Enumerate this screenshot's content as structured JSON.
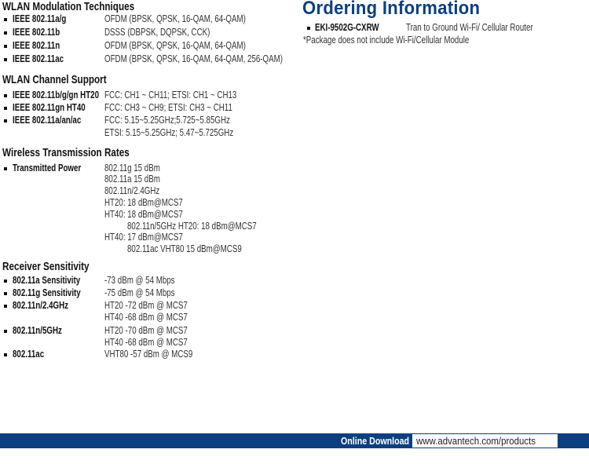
{
  "modulation": {
    "title": "WLAN Modulation Techniques",
    "rows": [
      {
        "label": "IEEE 802.11a/g",
        "value": "OFDM (BPSK, QPSK, 16-QAM, 64-QAM)"
      },
      {
        "label": "IEEE 802.11b",
        "value": "DSSS (DBPSK, DQPSK, CCK)"
      },
      {
        "label": "IEEE 802.11n",
        "value": "OFDM (BPSK, QPSK, 16-QAM, 64-QAM)"
      },
      {
        "label": "IEEE 802.11ac",
        "value": "OFDM (BPSK, QPSK, 16-QAM, 64-QAM, 256-QAM)"
      }
    ]
  },
  "channel": {
    "title": "WLAN Channel Support",
    "rows": [
      {
        "label": "IEEE 802.11b/g/gn HT20",
        "value": "FCC: CH1 ~ CH11; ETSI: CH1 ~ CH13"
      },
      {
        "label": "IEEE 802.11gn HT40",
        "value": "FCC: CH3 ~ CH9; ETSI: CH3 ~ CH11"
      },
      {
        "label": "IEEE 802.11a/an/ac",
        "value": "FCC: 5.15~5.25GHz;5.725~5.85GHz",
        "value2": "ETSI: 5.15~5.25GHz; 5.47~5.725GHz"
      }
    ]
  },
  "rates": {
    "title": "Wireless Transmission Rates",
    "label": "Transmitted Power",
    "lines": [
      "802.11g 15 dBm",
      "802.11a 15 dBm",
      "802.11n/2.4GHz",
      "HT20: 18 dBm@MCS7",
      "HT40: 18 dBm@MCS7",
      "802.11n/5GHz HT20: 18 dBm@MCS7",
      "HT40: 17 dBm@MCS7",
      "802.11ac VHT80 15 dBm@MCS9"
    ]
  },
  "sensitivity": {
    "title": "Receiver Sensitivity",
    "rows": [
      {
        "label": "802.11a Sensitivity",
        "value": "-73 dBm @ 54 Mbps"
      },
      {
        "label": "802.11g Sensitivity",
        "value": "-75 dBm @ 54 Mbps"
      },
      {
        "label": "802.11n/2.4GHz",
        "value": "HT20 -72 dBm @ MCS7",
        "value2": "HT40 -68 dBm @ MCS7"
      },
      {
        "label": "802.11n/5GHz",
        "value": "HT20 -70 dBm @ MCS7",
        "value2": "HT40 -68 dBm @ MCS7"
      },
      {
        "label": "802.11ac",
        "value": "VHT80 -57 dBm @ MCS9"
      }
    ]
  },
  "ordering": {
    "title": "Ordering Information",
    "model": "EKI-9502G-CXRW",
    "description": "Tran to Ground Wi-Fi/ Cellular Router",
    "note": "*Package does not include Wi-Fi/Cellular Module"
  },
  "footer": {
    "label": "Online Download",
    "url": "www.advantech.com/products"
  },
  "colors": {
    "brand": "#0d3f7f"
  }
}
